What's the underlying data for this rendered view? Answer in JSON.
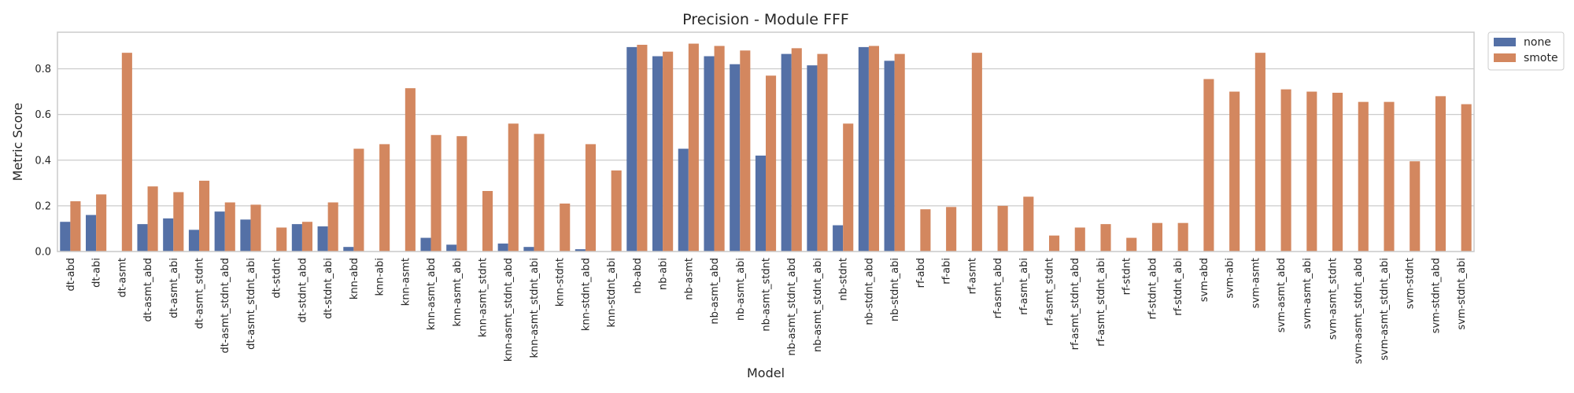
{
  "chart_data": {
    "type": "bar",
    "title": "Precision - Module FFF",
    "xlabel": "Model",
    "ylabel": "Metric Score",
    "ylim": [
      0,
      0.96
    ],
    "yticks": [
      "0.0",
      "0.2",
      "0.4",
      "0.6",
      "0.8"
    ],
    "legend_position": "outside-top-right",
    "categories": [
      "dt-abd",
      "dt-abi",
      "dt-asmt",
      "dt-asmt_abd",
      "dt-asmt_abi",
      "dt-asmt_stdnt",
      "dt-asmt_stdnt_abd",
      "dt-asmt_stdnt_abi",
      "dt-stdnt",
      "dt-stdnt_abd",
      "dt-stdnt_abi",
      "knn-abd",
      "knn-abi",
      "knn-asmt",
      "knn-asmt_abd",
      "knn-asmt_abi",
      "knn-asmt_stdnt",
      "knn-asmt_stdnt_abd",
      "knn-asmt_stdnt_abi",
      "knn-stdnt",
      "knn-stdnt_abd",
      "knn-stdnt_abi",
      "nb-abd",
      "nb-abi",
      "nb-asmt",
      "nb-asmt_abd",
      "nb-asmt_abi",
      "nb-asmt_stdnt",
      "nb-asmt_stdnt_abd",
      "nb-asmt_stdnt_abi",
      "nb-stdnt",
      "nb-stdnt_abd",
      "nb-stdnt_abi",
      "rf-abd",
      "rf-abi",
      "rf-asmt",
      "rf-asmt_abd",
      "rf-asmt_abi",
      "rf-asmt_stdnt",
      "rf-asmt_stdnt_abd",
      "rf-asmt_stdnt_abi",
      "rf-stdnt",
      "rf-stdnt_abd",
      "rf-stdnt_abi",
      "svm-abd",
      "svm-abi",
      "svm-asmt",
      "svm-asmt_abd",
      "svm-asmt_abi",
      "svm-asmt_stdnt",
      "svm-asmt_stdnt_abd",
      "svm-asmt_stdnt_abi",
      "svm-stdnt",
      "svm-stdnt_abd",
      "svm-stdnt_abi"
    ],
    "series": [
      {
        "name": "none",
        "color": "#5470a6",
        "values": [
          0.13,
          0.16,
          0.0,
          0.12,
          0.145,
          0.095,
          0.175,
          0.14,
          0.0,
          0.12,
          0.11,
          0.02,
          0.0,
          0.0,
          0.06,
          0.03,
          0.0,
          0.035,
          0.02,
          0.0,
          0.01,
          0.0,
          0.895,
          0.855,
          0.45,
          0.855,
          0.82,
          0.42,
          0.865,
          0.815,
          0.115,
          0.895,
          0.835,
          0.0,
          0.0,
          0.0,
          0.0,
          0.0,
          0.0,
          0.0,
          0.0,
          0.0,
          0.0,
          0.0,
          0.0,
          0.0,
          0.0,
          0.0,
          0.0,
          0.0,
          0.0,
          0.0,
          0.0,
          0.0,
          0.0
        ]
      },
      {
        "name": "smote",
        "color": "#d3875f",
        "values": [
          0.22,
          0.25,
          0.87,
          0.285,
          0.26,
          0.31,
          0.215,
          0.205,
          0.105,
          0.13,
          0.215,
          0.45,
          0.47,
          0.715,
          0.51,
          0.505,
          0.265,
          0.56,
          0.515,
          0.21,
          0.47,
          0.355,
          0.905,
          0.875,
          0.91,
          0.9,
          0.88,
          0.77,
          0.89,
          0.865,
          0.56,
          0.9,
          0.865,
          0.185,
          0.195,
          0.87,
          0.2,
          0.24,
          0.07,
          0.105,
          0.12,
          0.06,
          0.125,
          0.125,
          0.755,
          0.7,
          0.87,
          0.71,
          0.7,
          0.695,
          0.655,
          0.655,
          0.395,
          0.68,
          0.645
        ]
      }
    ]
  }
}
